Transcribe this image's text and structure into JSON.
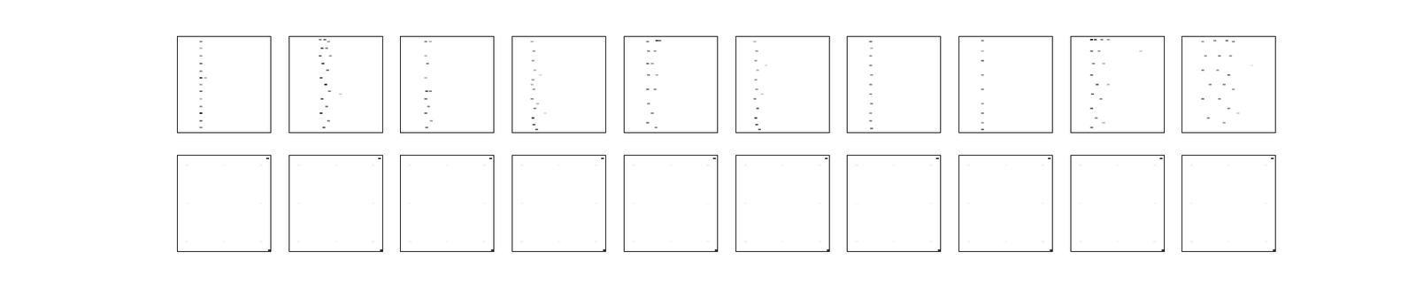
{
  "chart_data": [
    {
      "type": "heatmap",
      "tick_labels": false,
      "xlim": [
        0,
        100
      ],
      "ylim": [
        0,
        100
      ],
      "cells": [
        [
          25,
          95,
          0.5
        ],
        [
          25,
          88,
          0.3
        ],
        [
          25,
          80,
          0.4
        ],
        [
          25,
          72,
          0.6
        ],
        [
          25,
          64,
          0.5
        ],
        [
          25,
          57,
          0.8
        ],
        [
          25,
          50,
          0.4
        ],
        [
          25,
          43,
          0.6
        ],
        [
          25,
          35,
          0.3
        ],
        [
          25,
          27,
          0.5
        ],
        [
          25,
          20,
          0.9
        ],
        [
          25,
          12,
          0.6
        ],
        [
          25,
          5,
          0.5
        ],
        [
          30,
          57,
          0.3
        ]
      ]
    },
    {
      "type": "heatmap",
      "tick_labels": false,
      "xlim": [
        0,
        100
      ],
      "ylim": [
        0,
        100
      ],
      "cells": [
        [
          33,
          97,
          0.5
        ],
        [
          38,
          97,
          0.6
        ],
        [
          42,
          95,
          0.4
        ],
        [
          35,
          88,
          0.7
        ],
        [
          40,
          88,
          0.5
        ],
        [
          33,
          80,
          0.6
        ],
        [
          44,
          80,
          0.4
        ],
        [
          36,
          72,
          0.8
        ],
        [
          41,
          65,
          0.6
        ],
        [
          34,
          57,
          0.7
        ],
        [
          39,
          50,
          0.9
        ],
        [
          43,
          43,
          0.5
        ],
        [
          35,
          35,
          0.7
        ],
        [
          40,
          27,
          0.6
        ],
        [
          34,
          20,
          0.8
        ],
        [
          42,
          12,
          0.5
        ],
        [
          37,
          5,
          0.7
        ],
        [
          55,
          40,
          0.2
        ]
      ]
    },
    {
      "type": "heatmap",
      "tick_labels": false,
      "xlim": [
        0,
        100
      ],
      "ylim": [
        0,
        100
      ],
      "cells": [
        [
          27,
          95,
          0.5
        ],
        [
          32,
          95,
          0.3
        ],
        [
          27,
          80,
          0.3
        ],
        [
          29,
          72,
          0.5
        ],
        [
          27,
          57,
          0.3
        ],
        [
          28,
          43,
          0.7
        ],
        [
          32,
          43,
          0.5
        ],
        [
          27,
          35,
          0.6
        ],
        [
          30,
          27,
          0.5
        ],
        [
          27,
          20,
          0.6
        ],
        [
          33,
          12,
          0.4
        ],
        [
          28,
          5,
          0.6
        ]
      ]
    },
    {
      "type": "heatmap",
      "tick_labels": false,
      "xlim": [
        0,
        100
      ],
      "ylim": [
        0,
        100
      ],
      "cells": [
        [
          21,
          95,
          0.3
        ],
        [
          23,
          85,
          0.4
        ],
        [
          22,
          75,
          0.4
        ],
        [
          24,
          65,
          0.3
        ],
        [
          22,
          55,
          0.4
        ],
        [
          23,
          45,
          0.4
        ],
        [
          21,
          35,
          0.5
        ],
        [
          24,
          25,
          0.5
        ],
        [
          22,
          15,
          0.8
        ],
        [
          23,
          8,
          0.7
        ],
        [
          26,
          3,
          0.6
        ],
        [
          21,
          50,
          0.3
        ],
        [
          27,
          30,
          0.3
        ],
        [
          30,
          60,
          0.15
        ],
        [
          35,
          20,
          0.15
        ]
      ]
    },
    {
      "type": "heatmap",
      "tick_labels": false,
      "xlim": [
        0,
        100
      ],
      "ylim": [
        0,
        100
      ],
      "cells": [
        [
          25,
          95,
          0.5
        ],
        [
          35,
          96,
          0.8
        ],
        [
          38,
          96,
          0.6
        ],
        [
          26,
          85,
          0.5
        ],
        [
          33,
          85,
          0.4
        ],
        [
          25,
          72,
          0.6
        ],
        [
          30,
          72,
          0.4
        ],
        [
          26,
          60,
          0.5
        ],
        [
          35,
          60,
          0.3
        ],
        [
          25,
          45,
          0.6
        ],
        [
          33,
          45,
          0.5
        ],
        [
          26,
          30,
          0.5
        ],
        [
          30,
          20,
          0.5
        ],
        [
          25,
          10,
          0.6
        ],
        [
          34,
          5,
          0.5
        ]
      ]
    },
    {
      "type": "heatmap",
      "tick_labels": false,
      "xlim": [
        0,
        100
      ],
      "ylim": [
        0,
        100
      ],
      "cells": [
        [
          20,
          95,
          0.3
        ],
        [
          22,
          85,
          0.4
        ],
        [
          21,
          75,
          0.4
        ],
        [
          23,
          65,
          0.3
        ],
        [
          21,
          55,
          0.4
        ],
        [
          22,
          45,
          0.4
        ],
        [
          20,
          35,
          0.5
        ],
        [
          23,
          25,
          0.6
        ],
        [
          21,
          15,
          0.8
        ],
        [
          22,
          8,
          0.7
        ],
        [
          25,
          3,
          0.6
        ],
        [
          28,
          40,
          0.2
        ],
        [
          32,
          70,
          0.15
        ]
      ]
    },
    {
      "type": "heatmap",
      "tick_labels": false,
      "xlim": [
        0,
        100
      ],
      "ylim": [
        0,
        100
      ],
      "cells": [
        [
          25,
          95,
          0.6
        ],
        [
          26,
          88,
          0.3
        ],
        [
          25,
          80,
          0.4
        ],
        [
          25,
          70,
          0.5
        ],
        [
          26,
          60,
          0.4
        ],
        [
          25,
          50,
          0.5
        ],
        [
          25,
          40,
          0.4
        ],
        [
          26,
          30,
          0.5
        ],
        [
          25,
          20,
          0.4
        ],
        [
          25,
          12,
          0.5
        ],
        [
          26,
          4,
          0.6
        ]
      ]
    },
    {
      "type": "heatmap",
      "tick_labels": false,
      "xlim": [
        0,
        100
      ],
      "ylim": [
        0,
        100
      ],
      "cells": [
        [
          25,
          96,
          0.5
        ],
        [
          25,
          85,
          0.3
        ],
        [
          25,
          75,
          0.6
        ],
        [
          25,
          60,
          0.4
        ],
        [
          25,
          45,
          0.5
        ],
        [
          25,
          30,
          0.4
        ],
        [
          25,
          20,
          0.5
        ],
        [
          25,
          10,
          0.4
        ],
        [
          25,
          3,
          0.6
        ]
      ]
    },
    {
      "type": "heatmap",
      "tick_labels": false,
      "xlim": [
        0,
        100
      ],
      "ylim": [
        0,
        100
      ],
      "cells": [
        [
          22,
          97,
          0.9
        ],
        [
          26,
          97,
          0.7
        ],
        [
          33,
          97,
          0.5
        ],
        [
          40,
          97,
          0.4
        ],
        [
          22,
          85,
          0.6
        ],
        [
          30,
          85,
          0.4
        ],
        [
          24,
          72,
          0.5
        ],
        [
          35,
          72,
          0.3
        ],
        [
          22,
          60,
          0.6
        ],
        [
          28,
          50,
          0.7
        ],
        [
          40,
          50,
          0.3
        ],
        [
          23,
          40,
          0.6
        ],
        [
          32,
          35,
          0.5
        ],
        [
          22,
          25,
          0.7
        ],
        [
          27,
          15,
          0.5
        ],
        [
          22,
          5,
          0.6
        ],
        [
          35,
          10,
          0.3
        ],
        [
          75,
          85,
          0.2
        ]
      ]
    },
    {
      "type": "heatmap",
      "tick_labels": false,
      "xlim": [
        0,
        100
      ],
      "ylim": [
        0,
        100
      ],
      "cells": [
        [
          22,
          95,
          0.4
        ],
        [
          35,
          96,
          0.5
        ],
        [
          48,
          96,
          0.6
        ],
        [
          55,
          95,
          0.5
        ],
        [
          25,
          80,
          0.4
        ],
        [
          40,
          80,
          0.5
        ],
        [
          52,
          80,
          0.4
        ],
        [
          22,
          65,
          0.5
        ],
        [
          38,
          65,
          0.4
        ],
        [
          50,
          60,
          0.6
        ],
        [
          30,
          50,
          0.5
        ],
        [
          45,
          50,
          0.5
        ],
        [
          55,
          45,
          0.4
        ],
        [
          22,
          35,
          0.6
        ],
        [
          40,
          35,
          0.5
        ],
        [
          50,
          25,
          0.5
        ],
        [
          28,
          15,
          0.5
        ],
        [
          45,
          10,
          0.4
        ],
        [
          60,
          20,
          0.2
        ],
        [
          75,
          70,
          0.1
        ]
      ]
    },
    {
      "type": "heatmap",
      "tick_labels": false,
      "xlim": [
        0,
        100
      ],
      "ylim": [
        0,
        100
      ],
      "cells": [
        [
          10,
          90,
          0.06
        ],
        [
          90,
          90,
          0.06
        ],
        [
          10,
          10,
          0.06
        ],
        [
          90,
          10,
          0.06
        ],
        [
          50,
          90,
          0.04
        ],
        [
          50,
          10,
          0.04
        ],
        [
          10,
          50,
          0.04
        ],
        [
          90,
          50,
          0.04
        ],
        [
          97,
          97,
          0.8
        ],
        [
          99,
          1,
          1
        ]
      ]
    },
    {
      "type": "heatmap",
      "tick_labels": false,
      "xlim": [
        0,
        100
      ],
      "ylim": [
        0,
        100
      ],
      "cells": [
        [
          10,
          90,
          0.06
        ],
        [
          90,
          90,
          0.06
        ],
        [
          10,
          10,
          0.06
        ],
        [
          90,
          10,
          0.06
        ],
        [
          50,
          90,
          0.04
        ],
        [
          50,
          10,
          0.04
        ],
        [
          10,
          50,
          0.04
        ],
        [
          90,
          50,
          0.04
        ],
        [
          97,
          97,
          0.8
        ],
        [
          99,
          1,
          1
        ]
      ]
    },
    {
      "type": "heatmap",
      "tick_labels": false,
      "xlim": [
        0,
        100
      ],
      "ylim": [
        0,
        100
      ],
      "cells": [
        [
          10,
          90,
          0.06
        ],
        [
          90,
          90,
          0.06
        ],
        [
          10,
          10,
          0.06
        ],
        [
          90,
          10,
          0.06
        ],
        [
          50,
          90,
          0.04
        ],
        [
          50,
          10,
          0.04
        ],
        [
          10,
          50,
          0.04
        ],
        [
          90,
          50,
          0.04
        ],
        [
          97,
          97,
          0.8
        ],
        [
          99,
          1,
          1
        ]
      ]
    },
    {
      "type": "heatmap",
      "tick_labels": false,
      "xlim": [
        0,
        100
      ],
      "ylim": [
        0,
        100
      ],
      "cells": [
        [
          10,
          90,
          0.06
        ],
        [
          90,
          90,
          0.06
        ],
        [
          10,
          10,
          0.06
        ],
        [
          90,
          10,
          0.06
        ],
        [
          50,
          90,
          0.04
        ],
        [
          50,
          10,
          0.04
        ],
        [
          10,
          50,
          0.04
        ],
        [
          90,
          50,
          0.04
        ],
        [
          97,
          97,
          0.8
        ],
        [
          99,
          1,
          1
        ]
      ]
    },
    {
      "type": "heatmap",
      "tick_labels": false,
      "xlim": [
        0,
        100
      ],
      "ylim": [
        0,
        100
      ],
      "cells": [
        [
          10,
          90,
          0.06
        ],
        [
          90,
          90,
          0.06
        ],
        [
          10,
          10,
          0.06
        ],
        [
          90,
          10,
          0.06
        ],
        [
          50,
          90,
          0.04
        ],
        [
          50,
          10,
          0.04
        ],
        [
          10,
          50,
          0.04
        ],
        [
          90,
          50,
          0.04
        ],
        [
          97,
          97,
          0.8
        ],
        [
          99,
          1,
          1
        ]
      ]
    },
    {
      "type": "heatmap",
      "tick_labels": false,
      "xlim": [
        0,
        100
      ],
      "ylim": [
        0,
        100
      ],
      "cells": [
        [
          10,
          90,
          0.06
        ],
        [
          90,
          90,
          0.06
        ],
        [
          10,
          10,
          0.06
        ],
        [
          90,
          10,
          0.06
        ],
        [
          50,
          90,
          0.04
        ],
        [
          50,
          10,
          0.04
        ],
        [
          10,
          50,
          0.04
        ],
        [
          90,
          50,
          0.04
        ],
        [
          97,
          97,
          0.8
        ],
        [
          99,
          1,
          1
        ]
      ]
    },
    {
      "type": "heatmap",
      "tick_labels": false,
      "xlim": [
        0,
        100
      ],
      "ylim": [
        0,
        100
      ],
      "cells": [
        [
          10,
          90,
          0.06
        ],
        [
          90,
          90,
          0.06
        ],
        [
          10,
          10,
          0.06
        ],
        [
          90,
          10,
          0.06
        ],
        [
          50,
          90,
          0.04
        ],
        [
          50,
          10,
          0.04
        ],
        [
          10,
          50,
          0.04
        ],
        [
          90,
          50,
          0.04
        ],
        [
          97,
          97,
          0.8
        ],
        [
          99,
          1,
          1
        ]
      ]
    },
    {
      "type": "heatmap",
      "tick_labels": false,
      "xlim": [
        0,
        100
      ],
      "ylim": [
        0,
        100
      ],
      "cells": [
        [
          10,
          90,
          0.06
        ],
        [
          90,
          90,
          0.06
        ],
        [
          10,
          10,
          0.06
        ],
        [
          90,
          10,
          0.06
        ],
        [
          50,
          90,
          0.04
        ],
        [
          50,
          10,
          0.04
        ],
        [
          10,
          50,
          0.04
        ],
        [
          90,
          50,
          0.04
        ],
        [
          97,
          97,
          0.8
        ],
        [
          99,
          1,
          1
        ]
      ]
    },
    {
      "type": "heatmap",
      "tick_labels": false,
      "xlim": [
        0,
        100
      ],
      "ylim": [
        0,
        100
      ],
      "cells": [
        [
          10,
          90,
          0.06
        ],
        [
          90,
          90,
          0.06
        ],
        [
          10,
          10,
          0.06
        ],
        [
          90,
          10,
          0.06
        ],
        [
          50,
          90,
          0.04
        ],
        [
          50,
          10,
          0.04
        ],
        [
          10,
          50,
          0.04
        ],
        [
          90,
          50,
          0.04
        ],
        [
          97,
          97,
          0.8
        ],
        [
          99,
          1,
          1
        ]
      ]
    },
    {
      "type": "heatmap",
      "tick_labels": false,
      "xlim": [
        0,
        100
      ],
      "ylim": [
        0,
        100
      ],
      "cells": [
        [
          10,
          90,
          0.06
        ],
        [
          90,
          90,
          0.06
        ],
        [
          10,
          10,
          0.06
        ],
        [
          90,
          10,
          0.06
        ],
        [
          50,
          90,
          0.04
        ],
        [
          50,
          10,
          0.04
        ],
        [
          10,
          50,
          0.04
        ],
        [
          90,
          50,
          0.04
        ],
        [
          97,
          97,
          0.8
        ],
        [
          99,
          1,
          1
        ]
      ]
    }
  ]
}
